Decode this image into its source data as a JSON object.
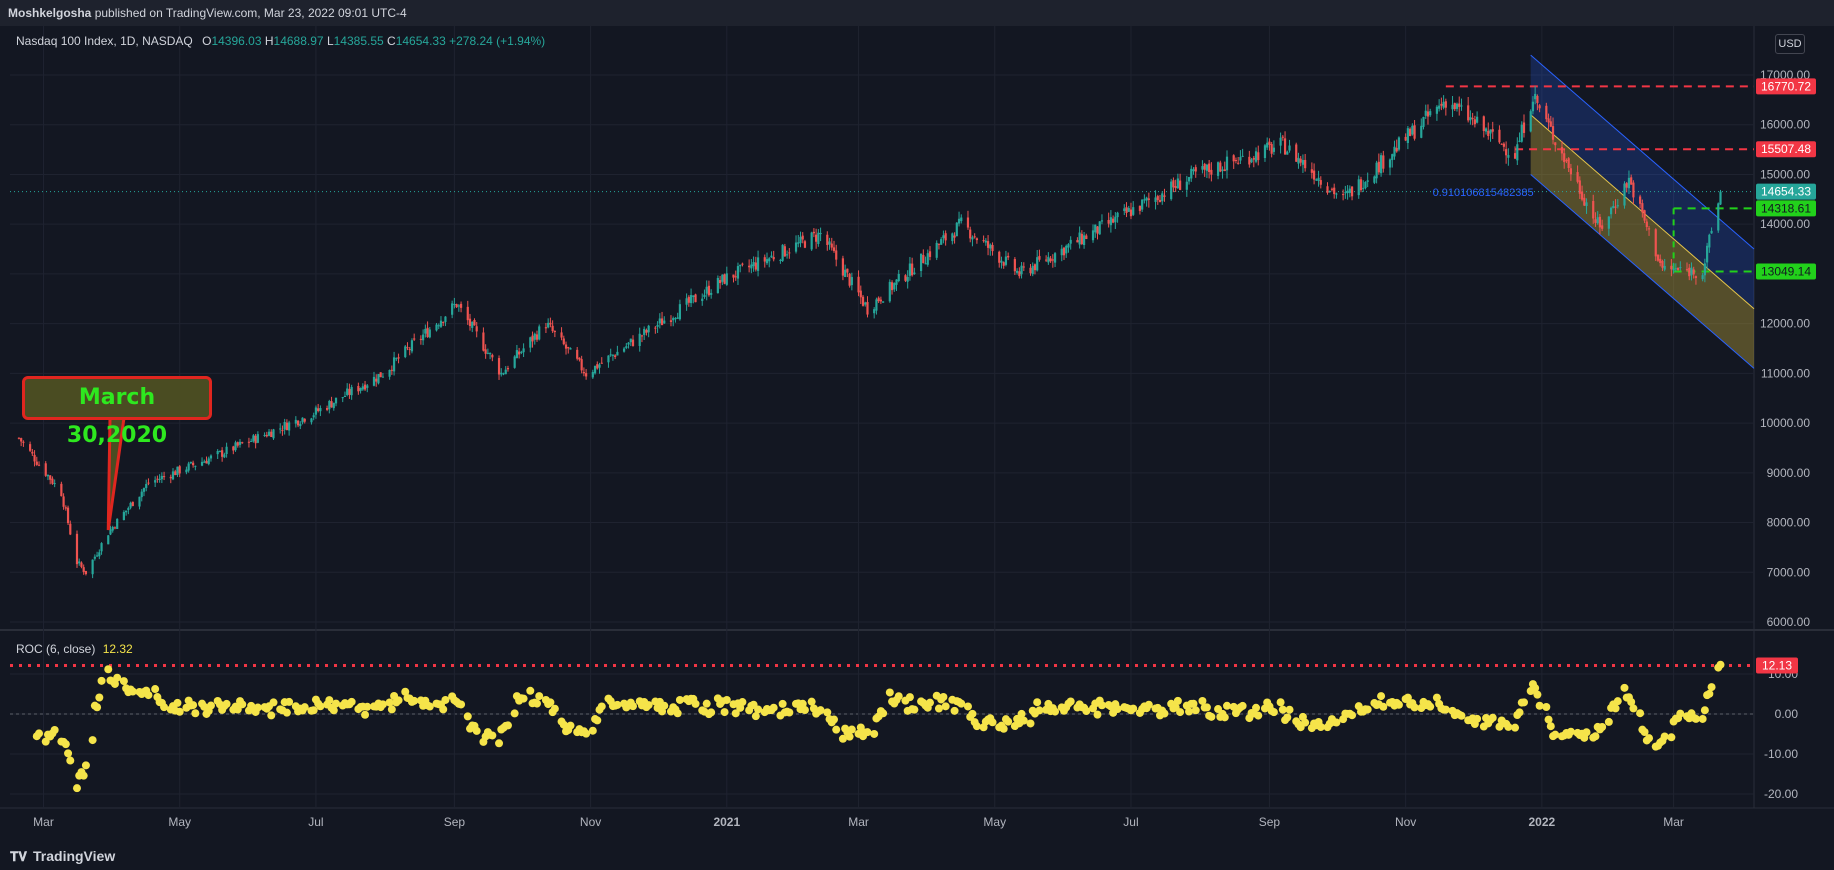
{
  "header": {
    "author": "Moshkelgosha",
    "published_text": "published on TradingView.com, Mar 23, 2022 09:01 UTC-4"
  },
  "legend": {
    "symbol": "Nasdaq 100 Index, 1D, NASDAQ",
    "open_label": "O",
    "open": "14396.03",
    "high_label": "H",
    "high": "14688.97",
    "low_label": "L",
    "low": "14385.55",
    "close_label": "C",
    "close": "14654.33",
    "change": "+278.24 (+1.94%)"
  },
  "currency": "USD",
  "roc_legend": {
    "label": "ROC (6, close)",
    "value": "12.32"
  },
  "annotation": {
    "text": "March 30,2020"
  },
  "fib_label": "0.910106815482385",
  "footer": {
    "brand": "TradingView"
  },
  "colors": {
    "background": "#131722",
    "up": "#26a69a",
    "down": "#ef5350",
    "roc": "#f5e44a",
    "level_red": "#f23645",
    "level_green": "#22d11b",
    "channel_blue": "#2962ff",
    "channel_yellow": "#b8a33a"
  },
  "chart_data": [
    {
      "type": "candlestick",
      "title": "Nasdaq 100 Index, 1D, NASDAQ",
      "y_axis": {
        "ticks": [
          "17000.00",
          "16000.00",
          "15000.00",
          "14000.00",
          "13000.00",
          "12000.00",
          "11000.00",
          "10000.00",
          "9000.00",
          "8000.00",
          "7000.00",
          "6000.00"
        ],
        "range": [
          5800,
          17300
        ]
      },
      "x_axis": {
        "ticks": [
          "Mar",
          "May",
          "Jul",
          "Sep",
          "Nov",
          "2021",
          "Mar",
          "May",
          "Jul",
          "Sep",
          "Nov",
          "2022",
          "Mar"
        ],
        "range": [
          "2020-02-15",
          "2022-04-06"
        ]
      },
      "price_path": [
        {
          "date": "2020-02-19",
          "close": 9700
        },
        {
          "date": "2020-03-09",
          "close": 8600
        },
        {
          "date": "2020-03-16",
          "close": 7200
        },
        {
          "date": "2020-03-20",
          "close": 7000
        },
        {
          "date": "2020-03-30",
          "close": 7800
        },
        {
          "date": "2020-04-17",
          "close": 8800
        },
        {
          "date": "2020-05-15",
          "close": 9300
        },
        {
          "date": "2020-06-30",
          "close": 10200
        },
        {
          "date": "2020-07-31",
          "close": 11000
        },
        {
          "date": "2020-09-02",
          "close": 12400
        },
        {
          "date": "2020-09-22",
          "close": 11000
        },
        {
          "date": "2020-10-12",
          "close": 12000
        },
        {
          "date": "2020-10-30",
          "close": 11000
        },
        {
          "date": "2020-12-31",
          "close": 12900
        },
        {
          "date": "2021-02-12",
          "close": 13800
        },
        {
          "date": "2021-03-05",
          "close": 12300
        },
        {
          "date": "2021-04-16",
          "close": 14000
        },
        {
          "date": "2021-05-12",
          "close": 13000
        },
        {
          "date": "2021-07-30",
          "close": 15000
        },
        {
          "date": "2021-09-07",
          "close": 15600
        },
        {
          "date": "2021-10-04",
          "close": 14500
        },
        {
          "date": "2021-11-19",
          "close": 16500
        },
        {
          "date": "2021-12-20",
          "close": 15400
        },
        {
          "date": "2021-12-28",
          "close": 16600
        },
        {
          "date": "2022-01-27",
          "close": 13900
        },
        {
          "date": "2022-02-09",
          "close": 14900
        },
        {
          "date": "2022-02-24",
          "close": 13100
        },
        {
          "date": "2022-03-14",
          "close": 13049
        },
        {
          "date": "2022-03-22",
          "close": 14654.33
        }
      ],
      "price_labels": [
        {
          "value": "16770.72",
          "color": "#f23645"
        },
        {
          "value": "15507.48",
          "color": "#f23645"
        },
        {
          "value": "14654.33",
          "color": "#26a69a"
        },
        {
          "value": "14318.61",
          "color": "#22d11b"
        },
        {
          "value": "13049.14",
          "color": "#22d11b"
        }
      ],
      "levels": [
        {
          "value": 16770.72,
          "style": "dashed",
          "color": "#f23645"
        },
        {
          "value": 15507.48,
          "style": "dashed",
          "color": "#f23645"
        },
        {
          "value": 14318.61,
          "style": "dashed",
          "color": "#22d11b"
        },
        {
          "value": 13049.14,
          "style": "dashed",
          "color": "#22d11b"
        }
      ],
      "grid": true
    },
    {
      "type": "scatter",
      "title": "ROC (6, close)",
      "y_axis": {
        "ticks": [
          "10.00",
          "0.00",
          "-10.00",
          "-20.00"
        ],
        "range": [
          -22,
          13
        ]
      },
      "last_value": 12.32,
      "level": {
        "value": 12.13,
        "label": "12.13",
        "style": "dotted",
        "color": "#f23645"
      },
      "grid": true
    }
  ]
}
